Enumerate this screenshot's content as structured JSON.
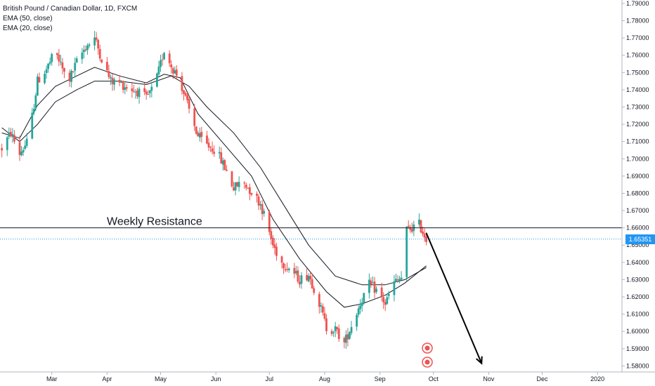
{
  "header": {
    "symbol_line": "British Pound / Canadian Dollar, 1D, FXCM",
    "ema50_label": "EMA (50, close)",
    "ema20_label": "EMA (20, close)"
  },
  "annotation": {
    "resistance_label": "Weekly Resistance",
    "last_price_tag": "1.65351"
  },
  "colors": {
    "up": "#26a69a",
    "down": "#ef5350",
    "ema": "#131722",
    "resistance": "#131722",
    "last_price_line": "#2196f3",
    "grid": "#e0e3eb"
  },
  "chart_data": {
    "type": "candlestick",
    "title": "British Pound / Canadian Dollar, 1D, FXCM",
    "x_tick_labels": [
      "Mar",
      "Apr",
      "May",
      "Jun",
      "Jul",
      "Aug",
      "Sep",
      "Oct",
      "Nov",
      "Dec",
      "2020"
    ],
    "y_tick_labels": [
      "1.58000",
      "1.59000",
      "1.60000",
      "1.61000",
      "1.62000",
      "1.63000",
      "1.64000",
      "1.65000",
      "1.66000",
      "1.67000",
      "1.68000",
      "1.69000",
      "1.70000",
      "1.71000",
      "1.72000",
      "1.73000",
      "1.74000",
      "1.75000",
      "1.76000",
      "1.77000",
      "1.78000",
      "1.79000"
    ],
    "ylim": [
      1.5765,
      1.792
    ],
    "resistance_level": 1.66,
    "last_price": 1.65351,
    "projection_arrow": {
      "from": [
        "2019-09-27",
        1.657
      ],
      "to": [
        "2019-10-28",
        1.5815
      ]
    },
    "close_anchors": [
      [
        "2019-02-01",
        1.706
      ],
      [
        "2019-02-06",
        1.715
      ],
      [
        "2019-02-11",
        1.703
      ],
      [
        "2019-02-16",
        1.711
      ],
      [
        "2019-02-21",
        1.745
      ],
      [
        "2019-02-26",
        1.752
      ],
      [
        "2019-03-03",
        1.762
      ],
      [
        "2019-03-07",
        1.752
      ],
      [
        "2019-03-10",
        1.744
      ],
      [
        "2019-03-15",
        1.756
      ],
      [
        "2019-03-20",
        1.765
      ],
      [
        "2019-03-25",
        1.77
      ],
      [
        "2019-03-30",
        1.755
      ],
      [
        "2019-04-03",
        1.745
      ],
      [
        "2019-04-08",
        1.744
      ],
      [
        "2019-04-13",
        1.741
      ],
      [
        "2019-04-18",
        1.739
      ],
      [
        "2019-04-23",
        1.735
      ],
      [
        "2019-04-28",
        1.743
      ],
      [
        "2019-05-03",
        1.763
      ],
      [
        "2019-05-07",
        1.754
      ],
      [
        "2019-05-12",
        1.745
      ],
      [
        "2019-05-17",
        1.728
      ],
      [
        "2019-05-22",
        1.713
      ],
      [
        "2019-05-27",
        1.708
      ],
      [
        "2019-06-01",
        1.705
      ],
      [
        "2019-06-06",
        1.695
      ],
      [
        "2019-06-11",
        1.683
      ],
      [
        "2019-06-16",
        1.687
      ],
      [
        "2019-06-21",
        1.681
      ],
      [
        "2019-06-26",
        1.674
      ],
      [
        "2019-06-30",
        1.661
      ],
      [
        "2019-07-03",
        1.65
      ],
      [
        "2019-07-08",
        1.64
      ],
      [
        "2019-07-13",
        1.636
      ],
      [
        "2019-07-18",
        1.63
      ],
      [
        "2019-07-23",
        1.633
      ],
      [
        "2019-07-28",
        1.62
      ],
      [
        "2019-08-02",
        1.602
      ],
      [
        "2019-08-07",
        1.601
      ],
      [
        "2019-08-12",
        1.593
      ],
      [
        "2019-08-17",
        1.606
      ],
      [
        "2019-08-22",
        1.619
      ],
      [
        "2019-08-26",
        1.627
      ],
      [
        "2019-08-31",
        1.623
      ],
      [
        "2019-09-04",
        1.616
      ],
      [
        "2019-09-09",
        1.628
      ],
      [
        "2019-09-13",
        1.631
      ],
      [
        "2019-09-15",
        1.658
      ],
      [
        "2019-09-19",
        1.66
      ],
      [
        "2019-09-23",
        1.662
      ],
      [
        "2019-09-27",
        1.6535
      ]
    ],
    "ema50_points": [
      [
        "2019-02-01",
        1.718
      ],
      [
        "2019-02-11",
        1.71
      ],
      [
        "2019-02-21",
        1.72
      ],
      [
        "2019-03-03",
        1.733
      ],
      [
        "2019-03-15",
        1.74
      ],
      [
        "2019-03-25",
        1.745
      ],
      [
        "2019-04-08",
        1.745
      ],
      [
        "2019-04-23",
        1.743
      ],
      [
        "2019-05-07",
        1.748
      ],
      [
        "2019-05-17",
        1.742
      ],
      [
        "2019-05-27",
        1.73
      ],
      [
        "2019-06-11",
        1.715
      ],
      [
        "2019-06-26",
        1.695
      ],
      [
        "2019-07-08",
        1.675
      ],
      [
        "2019-07-23",
        1.65
      ],
      [
        "2019-08-07",
        1.632
      ],
      [
        "2019-08-22",
        1.627
      ],
      [
        "2019-09-04",
        1.627
      ],
      [
        "2019-09-15",
        1.63
      ],
      [
        "2019-09-27",
        1.637
      ]
    ],
    "ema20_points": [
      [
        "2019-02-01",
        1.715
      ],
      [
        "2019-02-11",
        1.712
      ],
      [
        "2019-02-21",
        1.731
      ],
      [
        "2019-03-03",
        1.742
      ],
      [
        "2019-03-15",
        1.748
      ],
      [
        "2019-03-25",
        1.753
      ],
      [
        "2019-04-08",
        1.748
      ],
      [
        "2019-04-23",
        1.744
      ],
      [
        "2019-05-03",
        1.749
      ],
      [
        "2019-05-12",
        1.747
      ],
      [
        "2019-05-22",
        1.726
      ],
      [
        "2019-06-06",
        1.708
      ],
      [
        "2019-06-21",
        1.69
      ],
      [
        "2019-07-03",
        1.665
      ],
      [
        "2019-07-18",
        1.642
      ],
      [
        "2019-08-02",
        1.623
      ],
      [
        "2019-08-12",
        1.614
      ],
      [
        "2019-08-22",
        1.616
      ],
      [
        "2019-09-04",
        1.621
      ],
      [
        "2019-09-15",
        1.628
      ],
      [
        "2019-09-27",
        1.638
      ]
    ]
  }
}
